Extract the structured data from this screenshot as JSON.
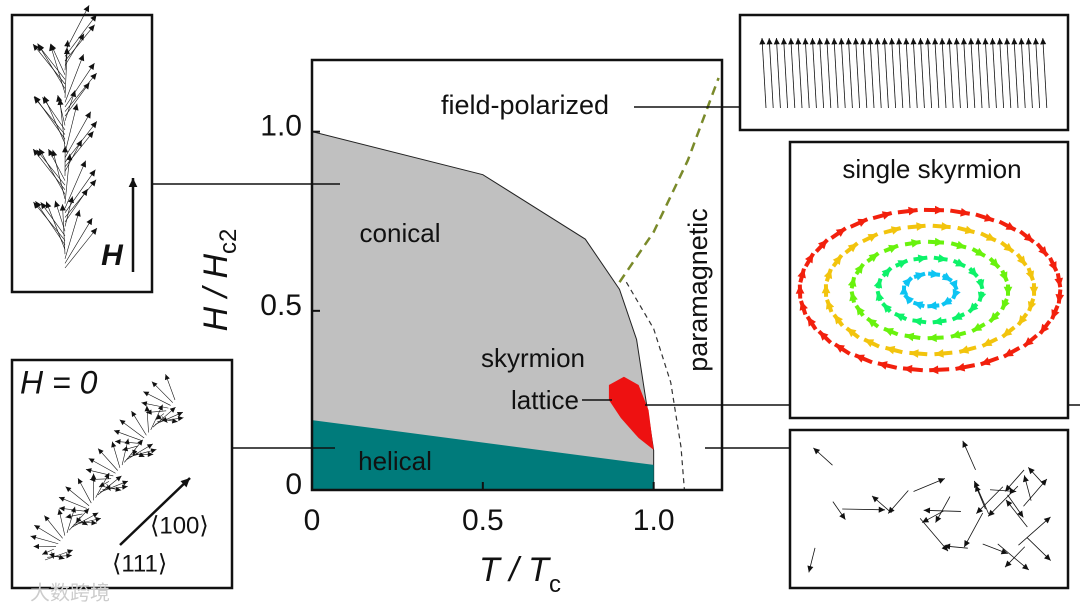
{
  "chart_data": {
    "type": "phase-diagram",
    "xlabel": "T / T",
    "xlabel_sub": "c",
    "ylabel": "H / H",
    "ylabel_sub": "c2",
    "xlim": [
      0,
      1.2
    ],
    "ylim": [
      0,
      1.2
    ],
    "xticks": [
      0,
      0.5,
      {
        "value": 1,
        "label": "1.0"
      }
    ],
    "yticks": [
      0,
      0.5,
      {
        "value": 1,
        "label": "1.0"
      }
    ],
    "regions": [
      {
        "label": "conical",
        "color": "#c0c0c0",
        "x": [
          0,
          0.5,
          0.8,
          0.9,
          0.95,
          1.0,
          1.0,
          0
        ],
        "y": [
          1.0,
          0.88,
          0.7,
          0.56,
          0.42,
          0.11,
          0,
          0
        ]
      },
      {
        "label": "helical",
        "color": "#007b7b",
        "x": [
          0,
          1.0,
          1.0,
          0
        ],
        "y": [
          0.195,
          0.07,
          0,
          0
        ]
      },
      {
        "label": [
          "skyrmion",
          "lattice"
        ],
        "color": "#ee1111",
        "x": [
          0.869,
          0.913,
          0.956,
          0.985,
          1.0,
          0.956,
          0.904,
          0.869
        ],
        "y": [
          0.293,
          0.316,
          0.293,
          0.223,
          0.112,
          0.145,
          0.201,
          0.251
        ]
      }
    ],
    "lines": [
      {
        "color": "#7a8a2a",
        "x": [
          0.9,
          1.0,
          1.1,
          1.19
        ],
        "y": [
          0.58,
          0.72,
          0.92,
          1.15
        ]
      },
      {
        "color": "#333333",
        "x": [
          0.92,
          1.0,
          1.05,
          1.08,
          1.09
        ],
        "y": [
          0.58,
          0.45,
          0.3,
          0.12,
          0
        ]
      }
    ],
    "annotations": {
      "field_polarized": "field-polarized",
      "paramagnetic": "paramagnetic"
    },
    "insets": {
      "field": "H",
      "zero_field": "H = 0",
      "dir1": "⟨100⟩",
      "dir2": "⟨111⟩",
      "skyrmion": "single skyrmion"
    },
    "watermark": "大数跨境"
  }
}
